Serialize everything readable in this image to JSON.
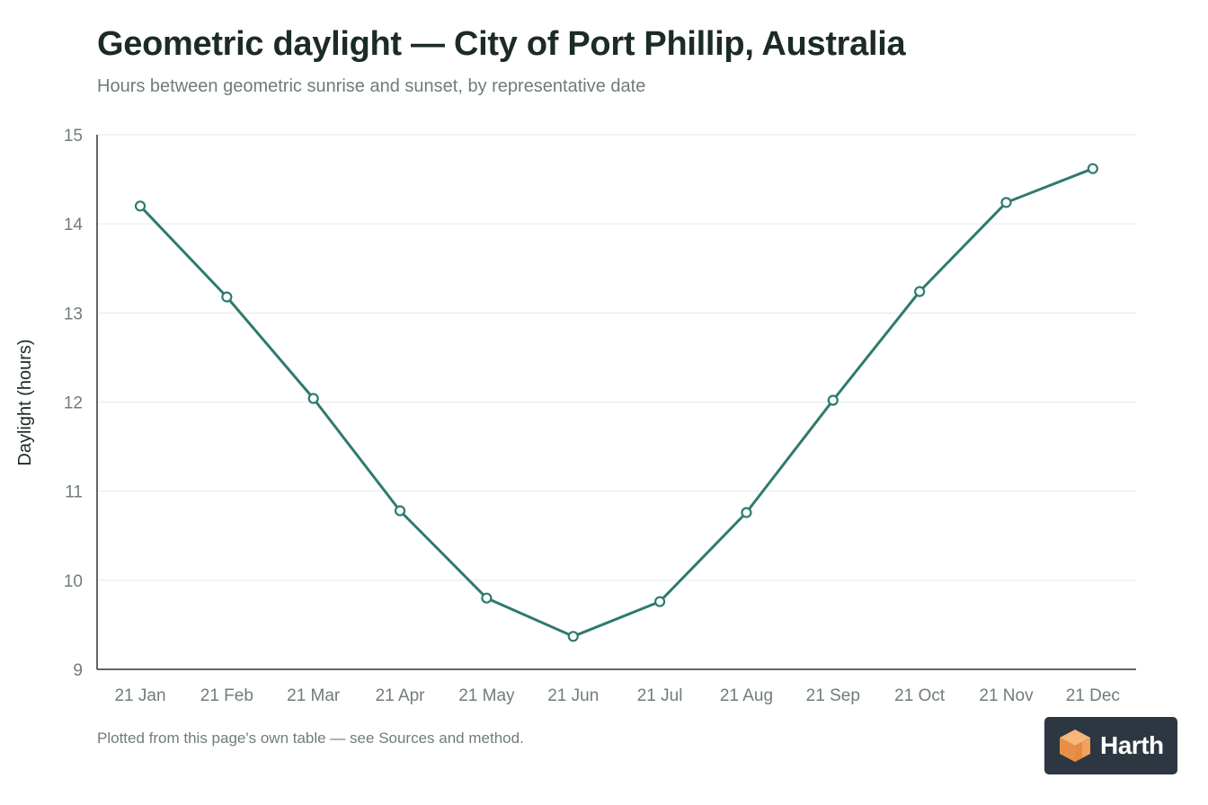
{
  "header": {
    "title": "Geometric daylight — City of Port Phillip, Australia",
    "subtitle": "Hours between geometric sunrise and sunset, by representative date"
  },
  "footnote": "Plotted from this page's own table — see Sources and method.",
  "brand": {
    "name": "Harth",
    "icon": "cube-logo-icon",
    "background_color": "#2c3741",
    "accent_color": "#f2a15a"
  },
  "colors": {
    "series": "#2e7a6f",
    "grid": "#e6e9e8",
    "axis": "#333333",
    "tick_label": "#6f7d79"
  },
  "chart_data": {
    "type": "line",
    "title": "Geometric daylight — City of Port Phillip, Australia",
    "subtitle": "Hours between geometric sunrise and sunset, by representative date",
    "xlabel": "",
    "ylabel": "Daylight (hours)",
    "categories": [
      "21 Jan",
      "21 Feb",
      "21 Mar",
      "21 Apr",
      "21 May",
      "21 Jun",
      "21 Jul",
      "21 Aug",
      "21 Sep",
      "21 Oct",
      "21 Nov",
      "21 Dec"
    ],
    "series": [
      {
        "values": [
          14.2,
          13.18,
          12.04,
          10.78,
          9.8,
          9.37,
          9.76,
          10.76,
          12.02,
          13.24,
          14.24,
          14.62
        ]
      }
    ],
    "ylim": [
      9,
      15
    ],
    "yticks": [
      9,
      10,
      11,
      12,
      13,
      14,
      15
    ],
    "grid": true,
    "legend": "none",
    "markers": "open-circle"
  }
}
